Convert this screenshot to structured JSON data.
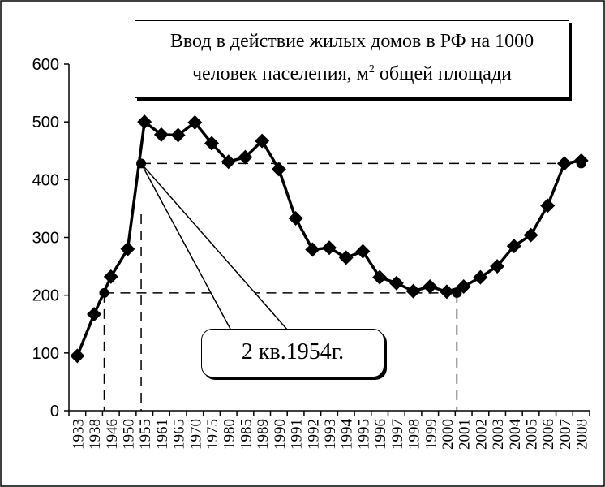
{
  "chart_data": {
    "type": "line",
    "title_line1": "Ввод в действие жилых домов в РФ на 1000",
    "title_line2": "человек населения, м",
    "title_sup": "2",
    "title_line2_tail": " общей площади",
    "categories": [
      "1933",
      "1938",
      "1946",
      "1950",
      "1955",
      "1961",
      "1965",
      "1970",
      "1975",
      "1980",
      "1985",
      "1989",
      "1990",
      "1991",
      "1992",
      "1993",
      "1994",
      "1995",
      "1996",
      "1997",
      "1998",
      "1999",
      "2000",
      "2001",
      "2002",
      "2003",
      "2004",
      "2005",
      "2006",
      "2007",
      "2008"
    ],
    "values": [
      95,
      167,
      232,
      280,
      500,
      478,
      477,
      499,
      463,
      431,
      439,
      467,
      418,
      333,
      279,
      282,
      265,
      276,
      231,
      221,
      207,
      215,
      206,
      215,
      231,
      250,
      285,
      304,
      355,
      428,
      433
    ],
    "ylim": [
      0,
      600
    ],
    "yticks": [
      0,
      100,
      200,
      300,
      400,
      500,
      600
    ],
    "grid": false,
    "reference_points": [
      {
        "x_index": 4,
        "x_offset": -0.2,
        "y": 428
      },
      {
        "x_index": 30,
        "x_offset": 0,
        "y": 428
      },
      {
        "x_index": 1.6,
        "x_offset": 0,
        "y": 204
      },
      {
        "x_index": 22.6,
        "x_offset": 0,
        "y": 204
      }
    ],
    "annotation": "2 кв.1954г.",
    "line_color": "#000000",
    "marker": "diamond"
  }
}
